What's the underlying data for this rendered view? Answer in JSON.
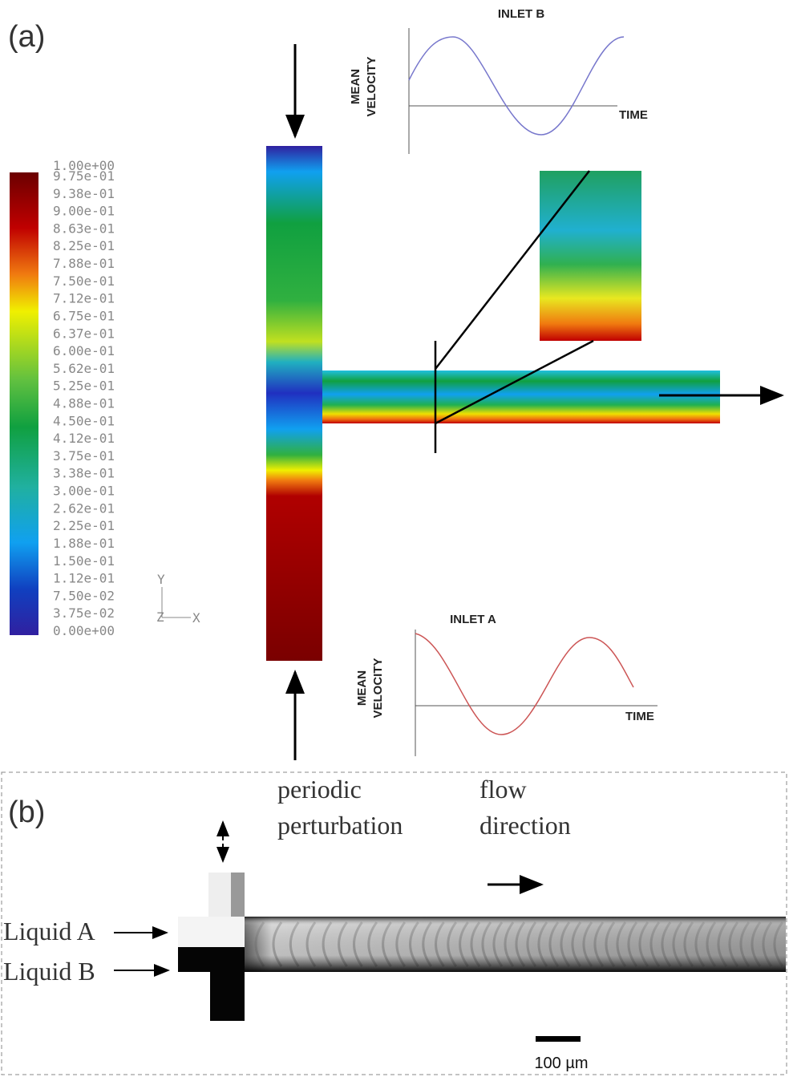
{
  "panel_a": {
    "label": "(a)",
    "colorbar": {
      "labels": [
        "1.00e+00",
        "9.75e-01",
        "9.38e-01",
        "9.00e-01",
        "8.63e-01",
        "8.25e-01",
        "7.88e-01",
        "7.50e-01",
        "7.12e-01",
        "6.75e-01",
        "6.37e-01",
        "6.00e-01",
        "5.62e-01",
        "5.25e-01",
        "4.88e-01",
        "4.50e-01",
        "4.12e-01",
        "3.75e-01",
        "3.38e-01",
        "3.00e-01",
        "2.62e-01",
        "2.25e-01",
        "1.88e-01",
        "1.50e-01",
        "1.12e-01",
        "7.50e-02",
        "3.75e-02",
        "0.00e+00"
      ]
    },
    "axes_triad": {
      "y": "Y",
      "z": "Z",
      "x": "X"
    },
    "inlet_b": {
      "title": "INLET B",
      "y_label": [
        "MEAN",
        "VELOCITY"
      ],
      "x_label": "TIME"
    },
    "inlet_a": {
      "title": "INLET A",
      "y_label": [
        "MEAN",
        "VELOCITY"
      ],
      "x_label": "TIME"
    }
  },
  "panel_b": {
    "label": "(b)",
    "annotations": {
      "perturbation": [
        "periodic",
        "perturbation"
      ],
      "flow": [
        "flow",
        "direction"
      ]
    },
    "inputs": [
      "Liquid A",
      "Liquid B"
    ],
    "scale_bar": "100 µm"
  }
}
